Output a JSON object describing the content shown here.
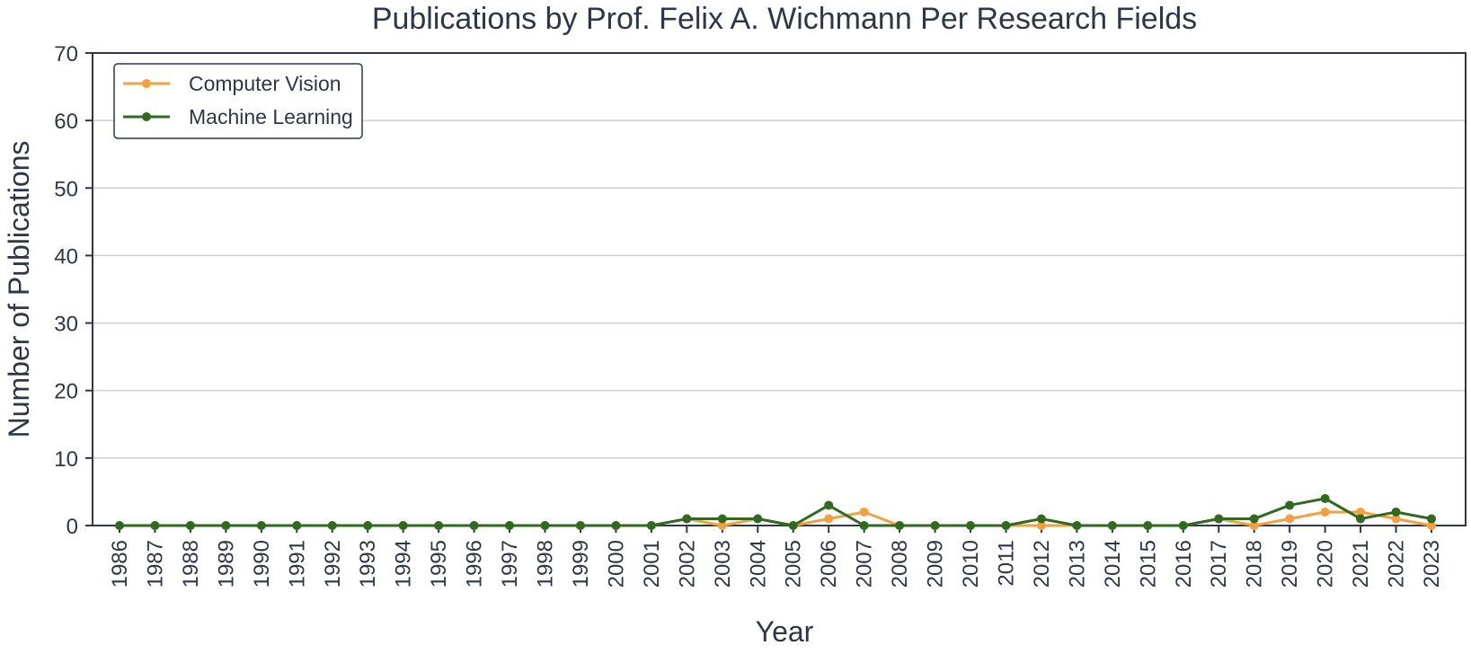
{
  "chart_data": {
    "type": "line",
    "title": "Publications by Prof. Felix A. Wichmann Per Research Fields",
    "xlabel": "Year",
    "ylabel": "Number of Publications",
    "x": [
      "1986",
      "1987",
      "1988",
      "1989",
      "1990",
      "1991",
      "1992",
      "1993",
      "1994",
      "1995",
      "1996",
      "1997",
      "1998",
      "1999",
      "2000",
      "2001",
      "2002",
      "2003",
      "2004",
      "2005",
      "2006",
      "2007",
      "2008",
      "2009",
      "2010",
      "2011",
      "2012",
      "2013",
      "2014",
      "2015",
      "2016",
      "2017",
      "2018",
      "2019",
      "2020",
      "2021",
      "2022",
      "2023"
    ],
    "yticks": [
      "0",
      "10",
      "20",
      "30",
      "40",
      "50",
      "60",
      "70"
    ],
    "ylim": [
      0,
      70
    ],
    "grid": "horizontal",
    "legend_position": "top-left",
    "series": [
      {
        "name": "Computer Vision",
        "color": "#f5a03c",
        "values": [
          0,
          0,
          0,
          0,
          0,
          0,
          0,
          0,
          0,
          0,
          0,
          0,
          0,
          0,
          0,
          0,
          1,
          0,
          1,
          0,
          1,
          2,
          0,
          0,
          0,
          0,
          0,
          0,
          0,
          0,
          0,
          1,
          0,
          1,
          2,
          2,
          1,
          0
        ]
      },
      {
        "name": "Machine Learning",
        "color": "#2e6b1e",
        "values": [
          0,
          0,
          0,
          0,
          0,
          0,
          0,
          0,
          0,
          0,
          0,
          0,
          0,
          0,
          0,
          0,
          1,
          1,
          1,
          0,
          3,
          0,
          0,
          0,
          0,
          0,
          1,
          0,
          0,
          0,
          0,
          1,
          1,
          3,
          4,
          1,
          2,
          1
        ]
      }
    ]
  }
}
